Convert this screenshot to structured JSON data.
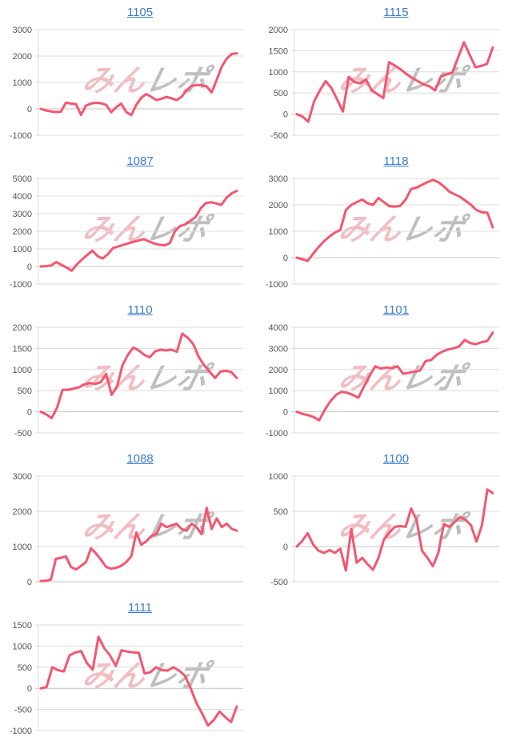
{
  "page": {
    "background": "#ffffff"
  },
  "watermark": {
    "text_pink": "みん",
    "text_gray": "レポ"
  },
  "colors": {
    "line": "#f4566e",
    "title_link": "#3a7bd0",
    "grid": "#dcdcdc",
    "zero_line": "#c4c4c4",
    "axis_label": "#555555",
    "watermark_pink": "#eeadb4",
    "watermark_gray": "#b0b0b0"
  },
  "chart_data": [
    {
      "type": "line",
      "title": "1105",
      "ylim": [
        -1000,
        3000
      ],
      "yticks": [
        3000,
        2000,
        1000,
        0,
        -1000
      ],
      "grid": true,
      "legend": "none",
      "values": [
        0,
        -60,
        -100,
        -120,
        -110,
        230,
        200,
        180,
        -230,
        120,
        200,
        230,
        210,
        150,
        -130,
        60,
        200,
        -120,
        -240,
        150,
        420,
        560,
        450,
        330,
        380,
        450,
        400,
        330,
        450,
        700,
        870,
        900,
        890,
        850,
        620,
        1100,
        1600,
        1900,
        2080,
        2100
      ]
    },
    {
      "type": "line",
      "title": "1115",
      "ylim": [
        -500,
        2000
      ],
      "yticks": [
        2000,
        1500,
        1000,
        500,
        0,
        -500
      ],
      "grid": true,
      "legend": "none",
      "values": [
        0,
        -60,
        -180,
        300,
        560,
        780,
        620,
        350,
        60,
        880,
        760,
        730,
        820,
        560,
        470,
        380,
        1230,
        1150,
        1060,
        950,
        860,
        780,
        700,
        660,
        560,
        890,
        940,
        990,
        1350,
        1700,
        1400,
        1110,
        1140,
        1190,
        1580
      ]
    },
    {
      "type": "line",
      "title": "1087",
      "ylim": [
        -1000,
        5000
      ],
      "yticks": [
        5000,
        4000,
        3000,
        2000,
        1000,
        0,
        -1000
      ],
      "grid": true,
      "legend": "none",
      "values": [
        0,
        20,
        60,
        250,
        90,
        -60,
        -240,
        120,
        400,
        650,
        900,
        590,
        450,
        700,
        1050,
        1130,
        1230,
        1320,
        1400,
        1480,
        1550,
        1420,
        1300,
        1230,
        1200,
        1320,
        2000,
        2300,
        2380,
        2600,
        2800,
        3300,
        3600,
        3650,
        3580,
        3500,
        3900,
        4150,
        4300
      ]
    },
    {
      "type": "line",
      "title": "1118",
      "ylim": [
        -1000,
        3000
      ],
      "yticks": [
        3000,
        2000,
        1000,
        0,
        -1000
      ],
      "grid": true,
      "legend": "none",
      "values": [
        0,
        -60,
        -120,
        150,
        400,
        620,
        800,
        950,
        1050,
        1800,
        2000,
        2100,
        2200,
        2060,
        2000,
        2260,
        2100,
        1950,
        1930,
        1960,
        2200,
        2600,
        2650,
        2760,
        2860,
        2950,
        2860,
        2700,
        2500,
        2400,
        2300,
        2150,
        2000,
        1800,
        1720,
        1700,
        1150
      ]
    },
    {
      "type": "line",
      "title": "1110",
      "ylim": [
        -500,
        2000
      ],
      "yticks": [
        2000,
        1500,
        1000,
        500,
        0,
        -500
      ],
      "grid": true,
      "legend": "none",
      "values": [
        0,
        -60,
        -150,
        100,
        520,
        520,
        550,
        580,
        650,
        680,
        660,
        700,
        900,
        400,
        600,
        1100,
        1350,
        1520,
        1450,
        1350,
        1290,
        1430,
        1470,
        1450,
        1470,
        1420,
        1850,
        1750,
        1600,
        1300,
        1100,
        950,
        800,
        950,
        970,
        940,
        800
      ]
    },
    {
      "type": "line",
      "title": "1101",
      "ylim": [
        -1000,
        4000
      ],
      "yticks": [
        4000,
        3000,
        2000,
        1000,
        0,
        -1000
      ],
      "grid": true,
      "legend": "none",
      "values": [
        0,
        -100,
        -160,
        -250,
        -400,
        100,
        500,
        800,
        950,
        900,
        800,
        670,
        1200,
        1700,
        2150,
        2050,
        2100,
        2060,
        2150,
        1800,
        1850,
        1900,
        1950,
        2400,
        2450,
        2700,
        2850,
        2950,
        3000,
        3100,
        3400,
        3250,
        3200,
        3300,
        3350,
        3750
      ]
    },
    {
      "type": "line",
      "title": "1088",
      "ylim": [
        0,
        3000
      ],
      "yticks": [
        3000,
        2000,
        1000,
        0
      ],
      "grid": true,
      "legend": "none",
      "values": [
        20,
        30,
        60,
        650,
        680,
        720,
        420,
        350,
        450,
        560,
        950,
        800,
        620,
        420,
        370,
        400,
        450,
        560,
        720,
        1400,
        1050,
        1150,
        1300,
        1360,
        1650,
        1550,
        1600,
        1650,
        1500,
        1450,
        1650,
        1550,
        1350,
        2100,
        1500,
        1800,
        1550,
        1650,
        1500,
        1450
      ]
    },
    {
      "type": "line",
      "title": "1100",
      "ylim": [
        -500,
        1000
      ],
      "yticks": [
        1000,
        500,
        0,
        -500
      ],
      "grid": true,
      "legend": "none",
      "values": [
        0,
        80,
        190,
        30,
        -60,
        -90,
        -50,
        -90,
        -30,
        -340,
        250,
        -230,
        -160,
        -250,
        -330,
        -160,
        100,
        200,
        280,
        290,
        280,
        540,
        380,
        -60,
        -160,
        -280,
        -90,
        320,
        280,
        350,
        420,
        380,
        300,
        70,
        300,
        810,
        760
      ]
    },
    {
      "type": "line",
      "title": "1111",
      "ylim": [
        -1000,
        1500
      ],
      "yticks": [
        1500,
        1000,
        500,
        0,
        -500,
        -1000
      ],
      "grid": true,
      "legend": "none",
      "values": [
        0,
        30,
        500,
        430,
        400,
        780,
        850,
        880,
        600,
        440,
        1220,
        950,
        780,
        530,
        900,
        870,
        850,
        840,
        350,
        380,
        500,
        430,
        420,
        500,
        420,
        300,
        0,
        -350,
        -600,
        -880,
        -750,
        -550,
        -680,
        -800,
        -430
      ]
    }
  ]
}
